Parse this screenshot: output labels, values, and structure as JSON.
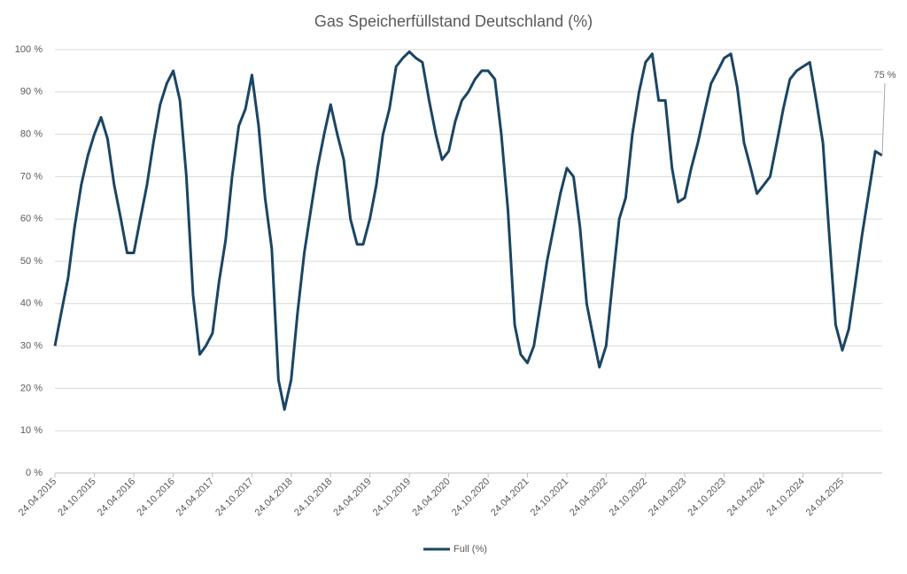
{
  "chart_data": {
    "type": "line",
    "title": "Gas Speicherfüllstand Deutschland (%)",
    "x": [
      "24.04.2015",
      "24.05.2015",
      "24.06.2015",
      "24.07.2015",
      "24.08.2015",
      "24.09.2015",
      "24.10.2015",
      "24.11.2015",
      "24.12.2015",
      "24.01.2016",
      "24.02.2016",
      "24.03.2016",
      "24.04.2016",
      "24.05.2016",
      "24.06.2016",
      "24.07.2016",
      "24.08.2016",
      "24.09.2016",
      "24.10.2016",
      "24.11.2016",
      "24.12.2016",
      "24.01.2017",
      "24.02.2017",
      "24.03.2017",
      "24.04.2017",
      "24.05.2017",
      "24.06.2017",
      "24.07.2017",
      "24.08.2017",
      "24.09.2017",
      "24.10.2017",
      "24.11.2017",
      "24.12.2017",
      "24.01.2018",
      "24.02.2018",
      "24.03.2018",
      "24.04.2018",
      "24.05.2018",
      "24.06.2018",
      "24.07.2018",
      "24.08.2018",
      "24.09.2018",
      "24.10.2018",
      "24.11.2018",
      "24.12.2018",
      "24.01.2019",
      "24.02.2019",
      "24.03.2019",
      "24.04.2019",
      "24.05.2019",
      "24.06.2019",
      "24.07.2019",
      "24.08.2019",
      "24.09.2019",
      "24.10.2019",
      "24.11.2019",
      "24.12.2019",
      "24.01.2020",
      "24.02.2020",
      "24.03.2020",
      "24.04.2020",
      "24.05.2020",
      "24.06.2020",
      "24.07.2020",
      "24.08.2020",
      "24.09.2020",
      "24.10.2020",
      "24.11.2020",
      "24.12.2020",
      "24.01.2021",
      "24.02.2021",
      "24.03.2021",
      "24.04.2021",
      "24.05.2021",
      "24.06.2021",
      "24.07.2021",
      "24.08.2021",
      "24.09.2021",
      "24.10.2021",
      "24.11.2021",
      "24.12.2021",
      "24.01.2022",
      "24.02.2022",
      "24.03.2022",
      "24.04.2022",
      "24.05.2022",
      "24.06.2022",
      "24.07.2022",
      "24.08.2022",
      "24.09.2022",
      "24.10.2022",
      "24.11.2022",
      "24.12.2022",
      "24.01.2023",
      "24.02.2023",
      "24.03.2023",
      "24.04.2023",
      "24.05.2023",
      "24.06.2023",
      "24.07.2023",
      "24.08.2023",
      "24.09.2023",
      "24.10.2023",
      "24.11.2023",
      "24.12.2023",
      "24.01.2024",
      "24.02.2024",
      "24.03.2024",
      "24.04.2024",
      "24.05.2024",
      "24.06.2024",
      "24.07.2024",
      "24.08.2024",
      "24.09.2024",
      "24.10.2024",
      "24.11.2024",
      "24.12.2024",
      "24.01.2025",
      "24.02.2025",
      "24.03.2025",
      "24.04.2025",
      "24.05.2025",
      "24.06.2025",
      "24.07.2025",
      "24.08.2025",
      "24.09.2025",
      "26.10.2025"
    ],
    "series": [
      {
        "name": "Full (%)",
        "color": "#1b4563",
        "values": [
          30,
          38,
          46,
          58,
          68,
          75,
          80,
          84,
          79,
          68,
          60,
          52,
          52,
          60,
          68,
          78,
          87,
          92,
          95,
          88,
          70,
          42,
          28,
          30,
          33,
          45,
          55,
          70,
          82,
          86,
          94,
          82,
          65,
          53,
          22,
          15,
          22,
          38,
          52,
          62,
          72,
          80,
          87,
          80,
          74,
          60,
          54,
          54,
          60,
          68,
          80,
          86,
          96,
          98,
          99.5,
          98,
          97,
          88,
          80,
          74,
          76,
          83,
          88,
          90,
          93,
          95,
          95,
          93,
          80,
          62,
          35,
          28,
          26,
          30,
          40,
          50,
          58,
          66,
          72,
          70,
          58,
          40,
          32,
          25,
          30,
          45,
          60,
          65,
          80,
          90,
          97,
          99,
          88,
          88,
          72,
          64,
          65,
          72,
          78,
          85,
          92,
          95,
          98,
          99,
          91,
          78,
          72,
          66,
          68,
          70,
          78,
          86,
          93,
          95,
          96,
          97,
          88,
          78,
          55,
          35,
          29,
          34,
          45,
          56,
          66,
          76,
          75
        ]
      }
    ],
    "annotation": "75 %",
    "xlim": [
      "24.04.2015",
      "26.10.2025"
    ],
    "xticks": [
      "24.04.2015",
      "24.10.2015",
      "24.04.2016",
      "24.10.2016",
      "24.04.2017",
      "24.10.2017",
      "24.04.2018",
      "24.10.2018",
      "24.04.2019",
      "24.10.2019",
      "24.04.2020",
      "24.10.2020",
      "24.04.2021",
      "24.10.2021",
      "24.04.2022",
      "24.10.2022",
      "24.04.2023",
      "24.10.2023",
      "24.04.2024",
      "24.10.2024",
      "24.04.2025"
    ],
    "ylim": [
      0,
      100
    ],
    "yticks": [
      {
        "value": 0,
        "label": "0 %"
      },
      {
        "value": 10,
        "label": "10 %"
      },
      {
        "value": 20,
        "label": "20 %"
      },
      {
        "value": 30,
        "label": "30 %"
      },
      {
        "value": 40,
        "label": "40 %"
      },
      {
        "value": 50,
        "label": "50 %"
      },
      {
        "value": 60,
        "label": "60 %"
      },
      {
        "value": 70,
        "label": "70 %"
      },
      {
        "value": 80,
        "label": "80 %"
      },
      {
        "value": 90,
        "label": "90 %"
      },
      {
        "value": 100,
        "label": "100 %"
      }
    ],
    "grid": true,
    "legend": "bottom"
  }
}
